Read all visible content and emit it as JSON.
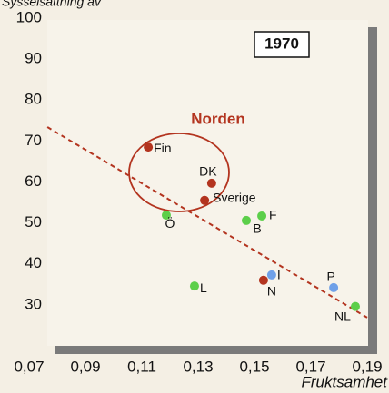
{
  "chart_data": {
    "type": "scatter",
    "y_label": "Sysselsättning av",
    "x_label": "Fruktsamhet",
    "annotation": "1970",
    "group_label": "Norden",
    "xlim": [
      0.07,
      0.19
    ],
    "xticks": [
      {
        "value": 0.07,
        "label": "0,07"
      },
      {
        "value": 0.09,
        "label": "0,09"
      },
      {
        "value": 0.11,
        "label": "0,11"
      },
      {
        "value": 0.13,
        "label": "0,13"
      },
      {
        "value": 0.15,
        "label": "0,15"
      },
      {
        "value": 0.17,
        "label": "0,17"
      },
      {
        "value": 0.19,
        "label": "0,19"
      }
    ],
    "ylim": [
      20,
      100
    ],
    "yticks": [
      30,
      40,
      50,
      60,
      70,
      80,
      90,
      100
    ],
    "points": [
      {
        "label": "Fin",
        "x": 0.1123,
        "y": 68.5,
        "color": "#b3341f"
      },
      {
        "label": "DK",
        "x": 0.1348,
        "y": 59.7,
        "color": "#b3341f"
      },
      {
        "label": "Sverige",
        "x": 0.1323,
        "y": 55.5,
        "color": "#b3341f"
      },
      {
        "label": "Ö",
        "x": 0.1187,
        "y": 51.9,
        "color": "#5ccf4a"
      },
      {
        "label": "B",
        "x": 0.1471,
        "y": 50.6,
        "color": "#5ccf4a"
      },
      {
        "label": "F",
        "x": 0.1526,
        "y": 51.7,
        "color": "#5ccf4a"
      },
      {
        "label": "L",
        "x": 0.1287,
        "y": 34.6,
        "color": "#5ccf4a"
      },
      {
        "label": "I",
        "x": 0.1561,
        "y": 37.3,
        "color": "#6fa0e8"
      },
      {
        "label": "N",
        "x": 0.1532,
        "y": 36.0,
        "color": "#b3341f"
      },
      {
        "label": "P",
        "x": 0.1781,
        "y": 34.2,
        "color": "#6fa0e8"
      },
      {
        "label": "NL",
        "x": 0.1858,
        "y": 29.6,
        "color": "#5ccf4a"
      }
    ],
    "trendline": {
      "x": [
        0.0765,
        0.19
      ],
      "y": [
        73.4,
        26.9
      ],
      "color": "#b3341f"
    }
  }
}
